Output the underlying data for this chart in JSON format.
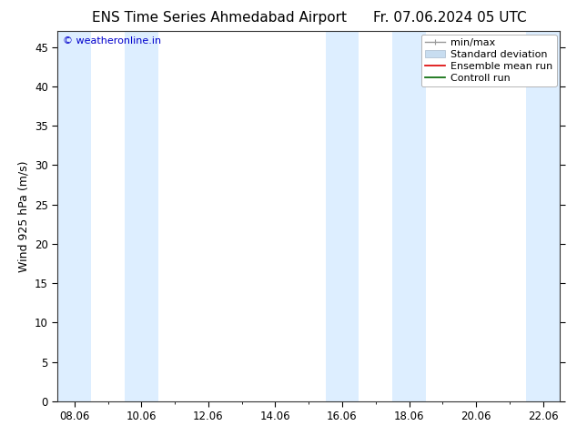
{
  "title": "ENS Time Series Ahmedabad Airport",
  "title_right": "Fr. 07.06.2024 05 UTC",
  "ylabel": "Wind 925 hPa (m/s)",
  "watermark": "© weatheronline.in",
  "watermark_color": "#0000cc",
  "bg_color": "#ffffff",
  "plot_bg_color": "#ffffff",
  "shaded_band_color": "#ddeeff",
  "ylim": [
    0,
    47
  ],
  "yticks": [
    0,
    5,
    10,
    15,
    20,
    25,
    30,
    35,
    40,
    45
  ],
  "xlim_start": 0,
  "xlim_end": 14,
  "xtick_labels": [
    "08.06",
    "10.06",
    "12.06",
    "14.06",
    "16.06",
    "18.06",
    "20.06",
    "22.06"
  ],
  "xtick_positions": [
    0,
    2,
    4,
    6,
    8,
    10,
    12,
    14
  ],
  "shade_ranges": [
    [
      -0.5,
      0.5
    ],
    [
      1.5,
      2.5
    ],
    [
      7.5,
      8.5
    ],
    [
      9.5,
      10.5
    ],
    [
      13.5,
      14.5
    ]
  ],
  "title_fontsize": 11,
  "axis_label_fontsize": 9,
  "tick_fontsize": 8.5,
  "legend_fontsize": 8
}
